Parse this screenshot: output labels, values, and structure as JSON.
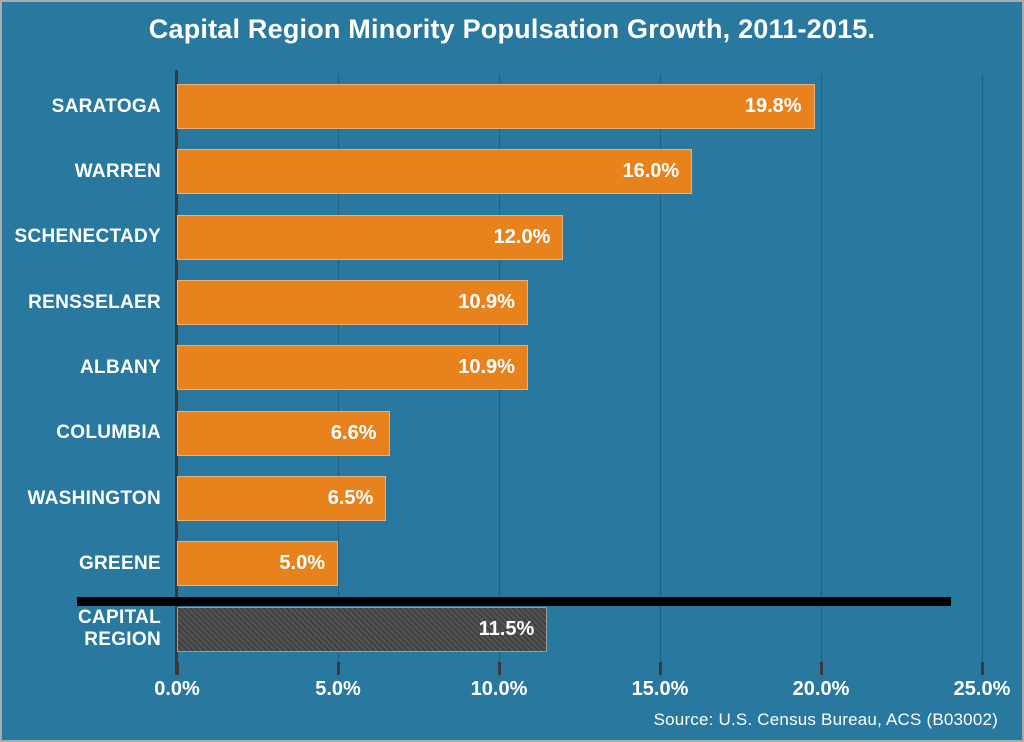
{
  "chart_data": {
    "type": "bar",
    "orientation": "horizontal",
    "title": "Capital Region Minority Populsation Growth, 2011-2015.",
    "categories": [
      "SARATOGA",
      "WARREN",
      "SCHENECTADY",
      "RENSSELAER",
      "ALBANY",
      "COLUMBIA",
      "WASHINGTON",
      "GREENE",
      "CAPITAL REGION"
    ],
    "values": [
      19.8,
      16.0,
      12.0,
      10.9,
      10.9,
      6.6,
      6.5,
      5.0,
      11.5
    ],
    "value_labels": [
      "19.8%",
      "16.0%",
      "12.0%",
      "10.9%",
      "10.9%",
      "6.6%",
      "6.5%",
      "5.0%",
      "11.5%"
    ],
    "summary_category": "CAPITAL REGION",
    "xlabel": "",
    "ylabel": "",
    "xlim": [
      0,
      25
    ],
    "x_ticks": [
      0,
      5,
      10,
      15,
      20,
      25
    ],
    "x_tick_labels": [
      "0.0%",
      "5.0%",
      "10.0%",
      "15.0%",
      "20.0%",
      "25.0%"
    ],
    "grid": "vertical",
    "legend": "none",
    "source": "Source: U.S. Census Bureau, ACS (B03002)",
    "colors": {
      "background": "#28789F",
      "bar": "#E8821D",
      "summary_bar": "#474747",
      "summary_bar_border": "#9B9B9B",
      "text": "#FFFFFF",
      "axis": "#3A3A3A",
      "divider": "#000000",
      "gridline": "rgba(0,0,0,0.20)"
    }
  }
}
